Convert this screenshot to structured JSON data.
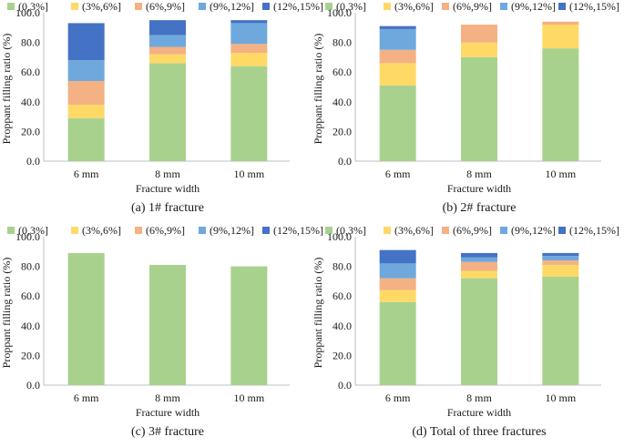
{
  "legend_labels": [
    "(0,3%]",
    "(3%,6%]",
    "(6%,9%]",
    "(9%,12%]",
    "(12%,15%]"
  ],
  "legend_colors": [
    "#a9d18e",
    "#ffd966",
    "#f4b183",
    "#6fa8dc",
    "#4472c4"
  ],
  "chart_data": [
    {
      "type": "bar",
      "stacked": true,
      "title": "(a) 1# fracture",
      "xlabel": "Fracture width",
      "ylabel": "Proppant filling ratio (%)",
      "ylim": [
        0,
        100
      ],
      "yticks": [
        "0.0",
        "20.0",
        "40.0",
        "60.0",
        "80.0",
        "100.0"
      ],
      "categories": [
        "6 mm",
        "8 mm",
        "10 mm"
      ],
      "series": [
        {
          "name": "(0,3%]",
          "values": [
            29,
            66,
            64
          ]
        },
        {
          "name": "(3%,6%]",
          "values": [
            9,
            6,
            9
          ]
        },
        {
          "name": "(6%,9%]",
          "values": [
            16,
            5,
            6
          ]
        },
        {
          "name": "(9%,12%]",
          "values": [
            14,
            8,
            14
          ]
        },
        {
          "name": "(12%,15%]",
          "values": [
            25,
            10,
            2
          ]
        }
      ]
    },
    {
      "type": "bar",
      "stacked": true,
      "title": "(b) 2# fracture",
      "xlabel": "Fracture width",
      "ylabel": "Proppant filling ratio (%)",
      "ylim": [
        0,
        100
      ],
      "yticks": [
        "0.0",
        "20.0",
        "40.0",
        "60.0",
        "80.0",
        "100.0"
      ],
      "categories": [
        "6 mm",
        "8 mm",
        "10 mm"
      ],
      "series": [
        {
          "name": "(0,3%]",
          "values": [
            51,
            70,
            76
          ]
        },
        {
          "name": "(3%,6%]",
          "values": [
            15,
            10,
            16
          ]
        },
        {
          "name": "(6%,9%]",
          "values": [
            9,
            12,
            2
          ]
        },
        {
          "name": "(9%,12%]",
          "values": [
            14,
            0,
            0
          ]
        },
        {
          "name": "(12%,15%]",
          "values": [
            2,
            0,
            0
          ]
        }
      ]
    },
    {
      "type": "bar",
      "stacked": true,
      "title": "(c) 3# fracture",
      "xlabel": "Fracture width",
      "ylabel": "Proppant filling ratio (%)",
      "ylim": [
        0,
        100
      ],
      "yticks": [
        "0.0",
        "20.0",
        "40.0",
        "60.0",
        "80.0",
        "100.0"
      ],
      "categories": [
        "6 mm",
        "8 mm",
        "10 mm"
      ],
      "series": [
        {
          "name": "(0,3%]",
          "values": [
            89,
            81,
            80
          ]
        },
        {
          "name": "(3%,6%]",
          "values": [
            0,
            0,
            0
          ]
        },
        {
          "name": "(6%,9%]",
          "values": [
            0,
            0,
            0
          ]
        },
        {
          "name": "(9%,12%]",
          "values": [
            0,
            0,
            0
          ]
        },
        {
          "name": "(12%,15%]",
          "values": [
            0,
            0,
            0
          ]
        }
      ]
    },
    {
      "type": "bar",
      "stacked": true,
      "title": "(d) Total of three fractures",
      "xlabel": "Fracture width",
      "ylabel": "Proppant filling ratio (%)",
      "ylim": [
        0,
        100
      ],
      "yticks": [
        "0.0",
        "20.0",
        "40.0",
        "60.0",
        "80.0",
        "100.0"
      ],
      "categories": [
        "6 mm",
        "8 mm",
        "10 mm"
      ],
      "series": [
        {
          "name": "(0,3%]",
          "values": [
            56,
            72,
            73
          ]
        },
        {
          "name": "(3%,6%]",
          "values": [
            8,
            5,
            8
          ]
        },
        {
          "name": "(6%,9%]",
          "values": [
            8,
            6,
            3
          ]
        },
        {
          "name": "(9%,12%]",
          "values": [
            10,
            3,
            3
          ]
        },
        {
          "name": "(12%,15%]",
          "values": [
            9,
            3,
            2
          ]
        }
      ]
    }
  ]
}
